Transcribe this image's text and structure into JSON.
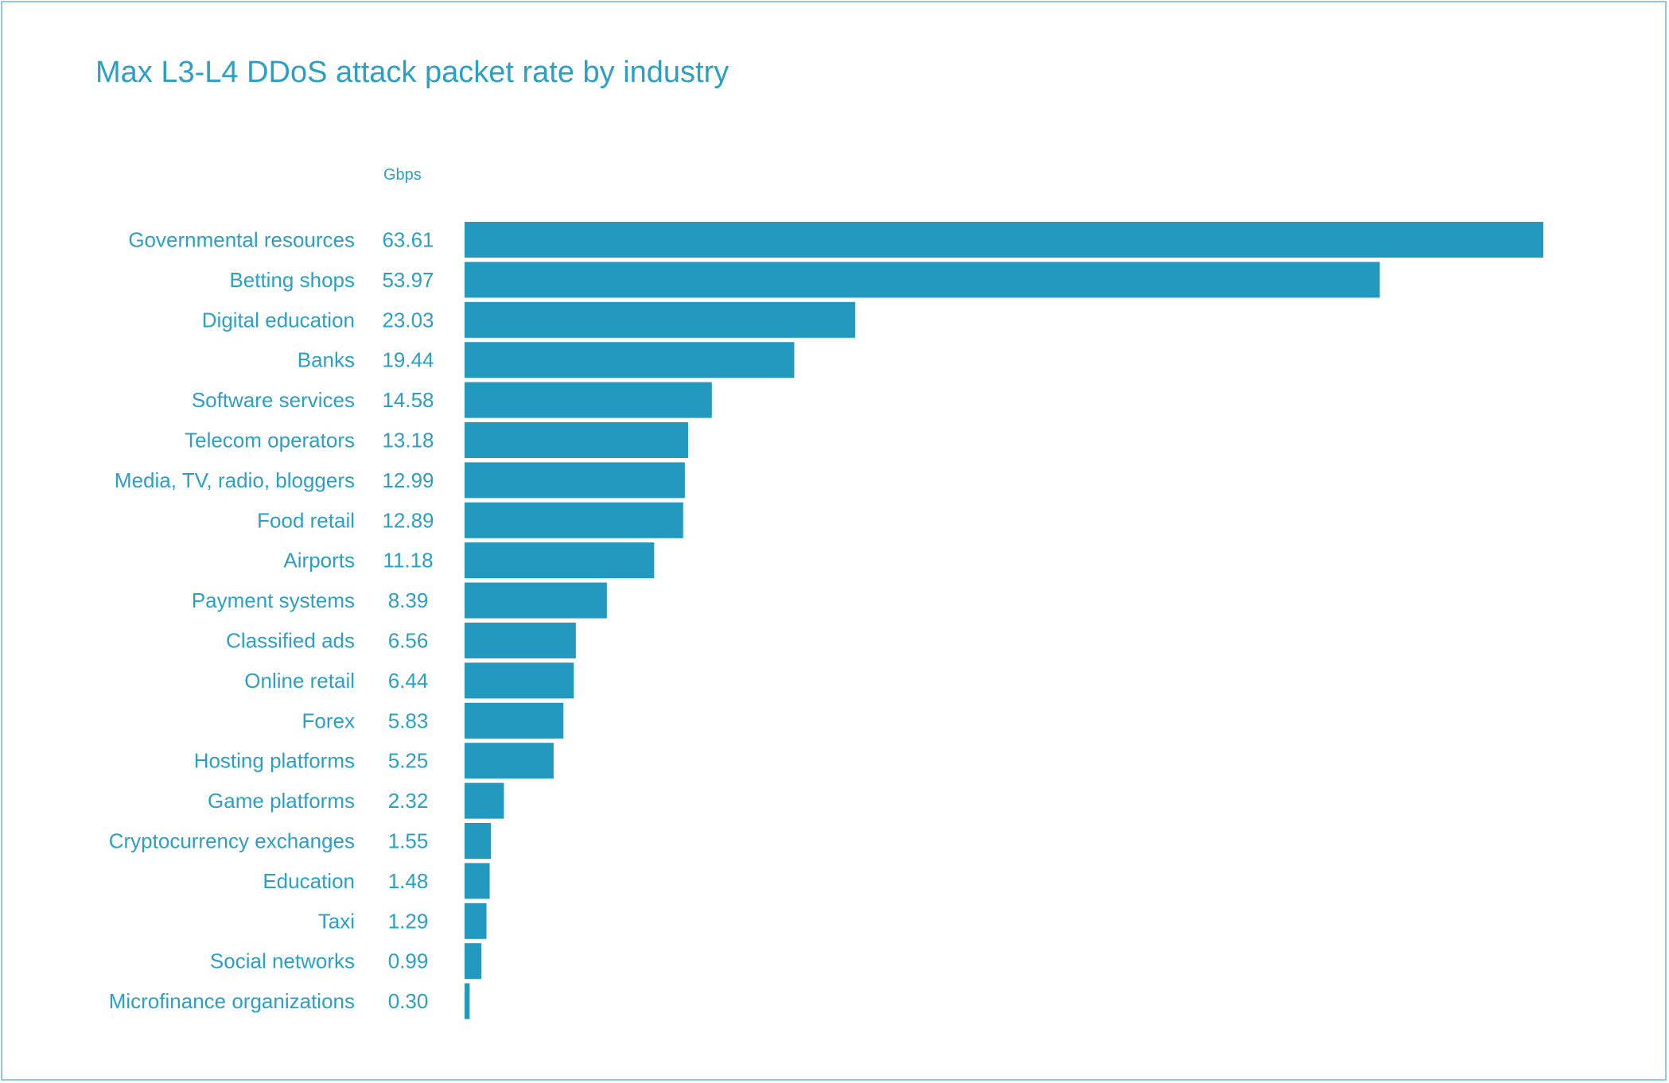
{
  "title": "Max L3-L4 DDoS attack packet rate by industry",
  "colors": {
    "bar": "#2399bf",
    "text": "#2b9fc4",
    "frame": "#8fcbe0"
  },
  "chart_data": {
    "type": "bar",
    "orientation": "horizontal",
    "title": "Max L3-L4 DDoS attack packet rate by industry",
    "unit_label": "Gbps",
    "xlim": [
      0,
      63.61
    ],
    "grid": false,
    "legend": "none",
    "categories": [
      "Governmental resources",
      "Betting shops",
      "Digital education",
      "Banks",
      "Software services",
      "Telecom operators",
      "Media, TV, radio, bloggers",
      "Food retail",
      "Airports",
      "Payment systems",
      "Classified ads",
      "Online retail",
      "Forex",
      "Hosting platforms",
      "Game platforms",
      "Cryptocurrency exchanges",
      "Education",
      "Taxi",
      "Social networks",
      "Microfinance organizations"
    ],
    "values": [
      63.61,
      53.97,
      23.03,
      19.44,
      14.58,
      13.18,
      12.99,
      12.89,
      11.18,
      8.39,
      6.56,
      6.44,
      5.83,
      5.25,
      2.32,
      1.55,
      1.48,
      1.29,
      0.99,
      0.3
    ],
    "value_labels": [
      "63.61",
      "53.97",
      "23.03",
      "19.44",
      "14.58",
      "13.18",
      "12.99",
      "12.89",
      "11.18",
      "8.39",
      "6.56",
      "6.44",
      "5.83",
      "5.25",
      "2.32",
      "1.55",
      "1.48",
      "1.29",
      "0.99",
      "0.30"
    ]
  }
}
